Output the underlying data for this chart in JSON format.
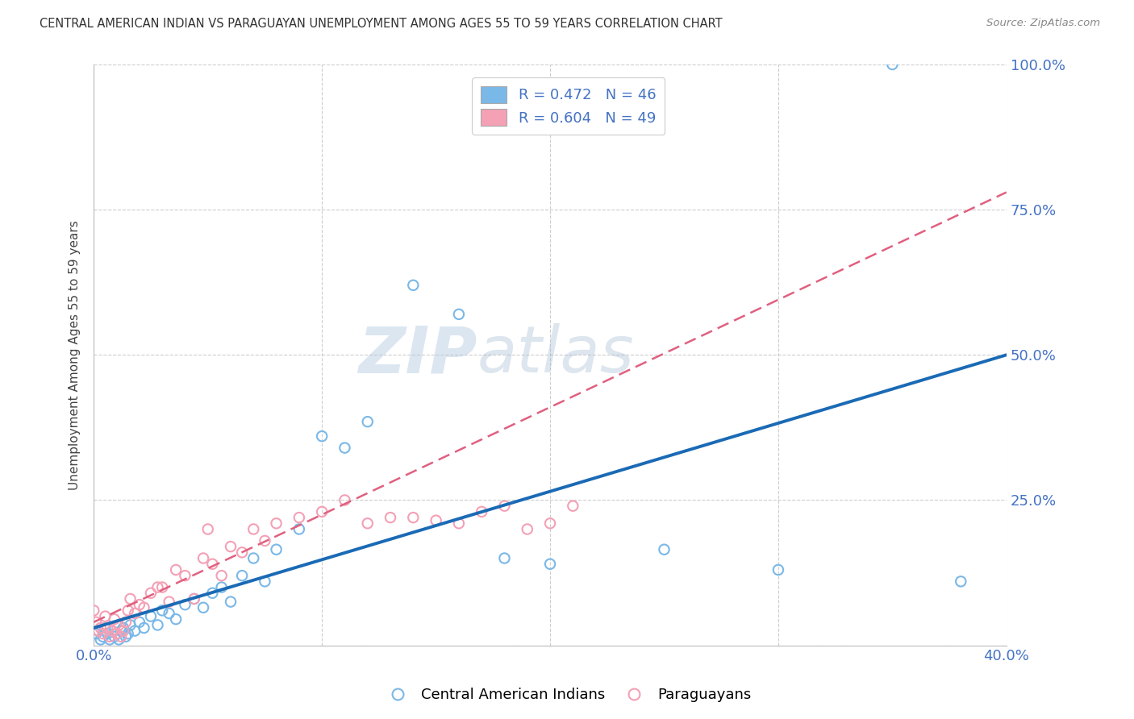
{
  "title": "CENTRAL AMERICAN INDIAN VS PARAGUAYAN UNEMPLOYMENT AMONG AGES 55 TO 59 YEARS CORRELATION CHART",
  "source": "Source: ZipAtlas.com",
  "ylabel": "Unemployment Among Ages 55 to 59 years",
  "xlim": [
    0.0,
    0.4
  ],
  "ylim": [
    0.0,
    1.0
  ],
  "xticks": [
    0.0,
    0.1,
    0.2,
    0.3,
    0.4
  ],
  "xtick_labels": [
    "0.0%",
    "",
    "",
    "",
    "40.0%"
  ],
  "yticks": [
    0.0,
    0.25,
    0.5,
    0.75,
    1.0
  ],
  "ytick_labels": [
    "",
    "25.0%",
    "50.0%",
    "75.0%",
    "100.0%"
  ],
  "legend_blue_r": "R = 0.472",
  "legend_blue_n": "N = 46",
  "legend_pink_r": "R = 0.604",
  "legend_pink_n": "N = 49",
  "blue_color": "#7ab8e8",
  "pink_color": "#f4a0b5",
  "blue_line_color": "#1a6ab5",
  "pink_line_color": "#e06080",
  "watermark_zip": "ZIP",
  "watermark_atlas": "atlas",
  "blue_scatter_x": [
    0.001,
    0.002,
    0.003,
    0.004,
    0.005,
    0.006,
    0.007,
    0.008,
    0.009,
    0.01,
    0.011,
    0.012,
    0.013,
    0.014,
    0.015,
    0.016,
    0.018,
    0.02,
    0.022,
    0.025,
    0.028,
    0.03,
    0.033,
    0.036,
    0.04,
    0.044,
    0.048,
    0.052,
    0.056,
    0.06,
    0.065,
    0.07,
    0.075,
    0.08,
    0.09,
    0.1,
    0.11,
    0.12,
    0.14,
    0.16,
    0.18,
    0.2,
    0.25,
    0.3,
    0.35,
    0.38
  ],
  "blue_scatter_y": [
    0.02,
    0.025,
    0.01,
    0.015,
    0.03,
    0.02,
    0.01,
    0.025,
    0.015,
    0.02,
    0.01,
    0.025,
    0.03,
    0.015,
    0.02,
    0.035,
    0.025,
    0.04,
    0.03,
    0.05,
    0.035,
    0.06,
    0.055,
    0.045,
    0.07,
    0.08,
    0.065,
    0.09,
    0.1,
    0.075,
    0.12,
    0.15,
    0.11,
    0.165,
    0.2,
    0.36,
    0.34,
    0.385,
    0.62,
    0.57,
    0.15,
    0.14,
    0.165,
    0.13,
    1.0,
    0.11
  ],
  "pink_scatter_x": [
    0.0,
    0.001,
    0.002,
    0.003,
    0.004,
    0.005,
    0.006,
    0.007,
    0.008,
    0.009,
    0.01,
    0.011,
    0.012,
    0.013,
    0.014,
    0.015,
    0.016,
    0.018,
    0.02,
    0.022,
    0.025,
    0.028,
    0.03,
    0.033,
    0.036,
    0.04,
    0.044,
    0.048,
    0.052,
    0.056,
    0.06,
    0.065,
    0.07,
    0.075,
    0.08,
    0.09,
    0.1,
    0.11,
    0.12,
    0.13,
    0.14,
    0.15,
    0.16,
    0.17,
    0.18,
    0.19,
    0.2,
    0.21,
    0.05
  ],
  "pink_scatter_y": [
    0.06,
    0.04,
    0.025,
    0.03,
    0.02,
    0.05,
    0.03,
    0.015,
    0.025,
    0.045,
    0.02,
    0.035,
    0.015,
    0.025,
    0.04,
    0.06,
    0.08,
    0.055,
    0.07,
    0.065,
    0.09,
    0.1,
    0.1,
    0.075,
    0.13,
    0.12,
    0.08,
    0.15,
    0.14,
    0.12,
    0.17,
    0.16,
    0.2,
    0.18,
    0.21,
    0.22,
    0.23,
    0.25,
    0.21,
    0.22,
    0.22,
    0.215,
    0.21,
    0.23,
    0.24,
    0.2,
    0.21,
    0.24,
    0.2
  ],
  "blue_line_x": [
    0.0,
    0.4
  ],
  "blue_line_y": [
    0.03,
    0.5
  ],
  "pink_line_x": [
    0.0,
    0.4
  ],
  "pink_line_y": [
    0.04,
    0.78
  ],
  "marker_size": 80
}
